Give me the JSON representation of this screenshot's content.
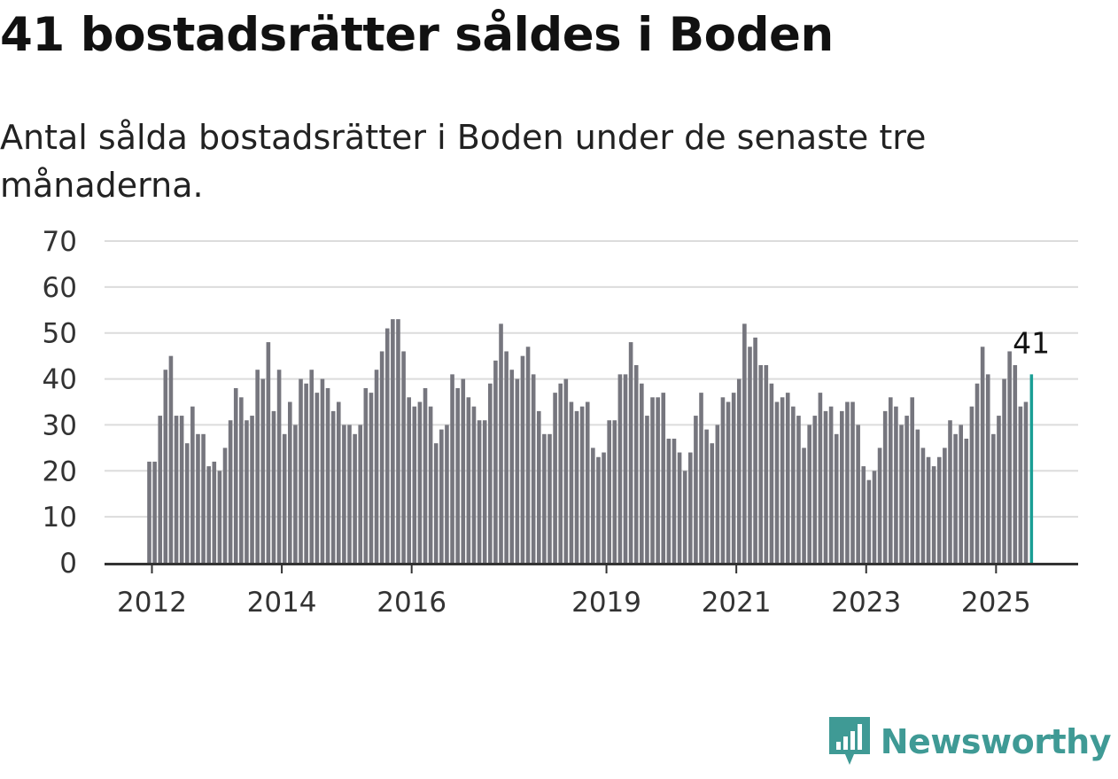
{
  "title": "41 bostadsrätter såldes i Boden",
  "subtitle": "Antal sålda bostadsrätter i Boden under de senaste tre månaderna.",
  "brand": {
    "name": "Newsworthy",
    "color": "#3f9a95",
    "icon": "newsworthy-logo-icon"
  },
  "chart_data": {
    "type": "bar",
    "start": "2012-01",
    "frequency": "monthly",
    "ylim": [
      0,
      70
    ],
    "yticks": [
      0,
      10,
      20,
      30,
      40,
      50,
      60,
      70
    ],
    "xticks": [
      "2012",
      "2014",
      "2016",
      "2019",
      "2021",
      "2023",
      "2025"
    ],
    "grid": true,
    "bar_color": "#76767e",
    "highlight_color": "#1a9e95",
    "highlight_label": "41",
    "values": [
      22,
      22,
      32,
      42,
      45,
      32,
      32,
      26,
      34,
      28,
      28,
      21,
      22,
      20,
      25,
      31,
      38,
      36,
      31,
      32,
      42,
      40,
      48,
      33,
      42,
      28,
      35,
      30,
      40,
      39,
      42,
      37,
      40,
      38,
      33,
      35,
      30,
      30,
      28,
      30,
      38,
      37,
      42,
      46,
      51,
      53,
      53,
      46,
      36,
      34,
      35,
      38,
      34,
      26,
      29,
      30,
      41,
      38,
      40,
      36,
      34,
      31,
      31,
      39,
      44,
      52,
      46,
      42,
      40,
      45,
      47,
      41,
      33,
      28,
      28,
      37,
      39,
      40,
      35,
      33,
      34,
      35,
      25,
      23,
      24,
      31,
      31,
      41,
      41,
      48,
      43,
      39,
      32,
      36,
      36,
      37,
      27,
      27,
      24,
      20,
      24,
      32,
      37,
      29,
      26,
      30,
      36,
      35,
      37,
      40,
      52,
      47,
      49,
      43,
      43,
      39,
      35,
      36,
      37,
      34,
      32,
      25,
      30,
      32,
      37,
      33,
      34,
      28,
      33,
      35,
      35,
      30,
      21,
      18,
      20,
      25,
      33,
      36,
      34,
      30,
      32,
      36,
      29,
      25,
      23,
      21,
      23,
      25,
      31,
      28,
      30,
      27,
      34,
      39,
      47,
      41,
      28,
      32,
      40,
      46,
      43,
      34,
      35,
      41
    ]
  }
}
